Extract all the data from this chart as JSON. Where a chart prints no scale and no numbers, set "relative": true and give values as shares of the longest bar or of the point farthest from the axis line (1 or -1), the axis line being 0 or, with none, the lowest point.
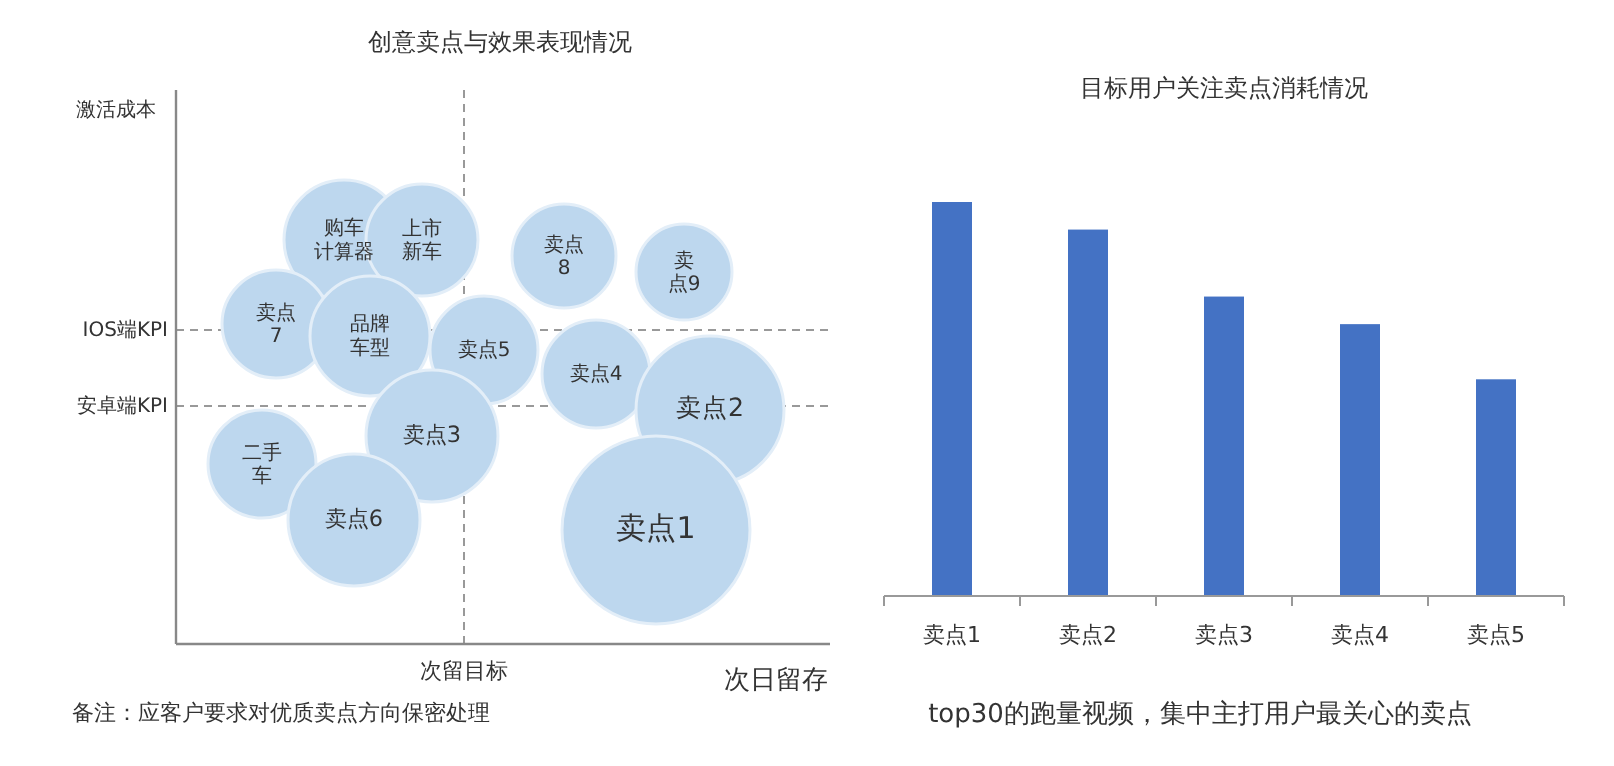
{
  "chart_data": [
    {
      "type": "other",
      "title": "创意卖点与效果表现情况",
      "xlabel": "次日留存",
      "ylabel": "激活成本",
      "annotations": [
        "购车计算器",
        "上市新车",
        "卖点8",
        "卖点9",
        "卖点7",
        "品牌车型",
        "卖点5",
        "卖点4",
        "卖点2",
        "卖点3",
        "二手车",
        "卖点6",
        "卖点1",
        "IOS端KPI",
        "安卓端KPI",
        "次留目标",
        "备注：应客户要求对优质卖点方向保密处理"
      ]
    },
    {
      "type": "bar",
      "title": "目标用户关注卖点消耗情况",
      "relative": true,
      "categories": [
        "卖点1",
        "卖点2",
        "卖点3",
        "卖点4",
        "卖点5"
      ],
      "values": [
        1,
        0.93,
        0.76,
        0.69,
        0.55
      ],
      "color": "#4472c4",
      "annotations": [
        "top30的跑量视频，集中主打用户最关心的卖点"
      ]
    }
  ]
}
